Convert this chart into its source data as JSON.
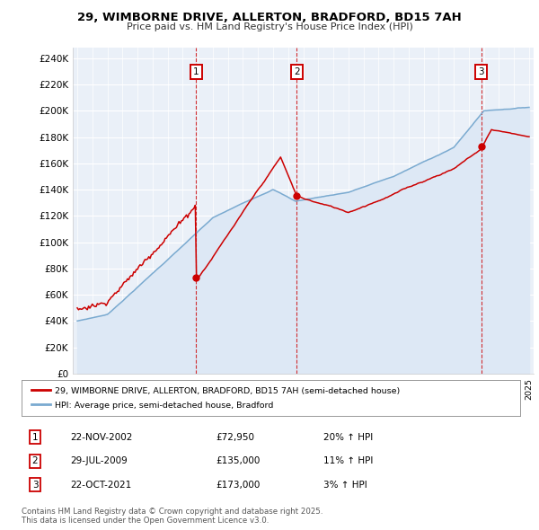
{
  "title": "29, WIMBORNE DRIVE, ALLERTON, BRADFORD, BD15 7AH",
  "subtitle": "Price paid vs. HM Land Registry's House Price Index (HPI)",
  "ylabel_ticks": [
    "£0",
    "£20K",
    "£40K",
    "£60K",
    "£80K",
    "£100K",
    "£120K",
    "£140K",
    "£160K",
    "£180K",
    "£200K",
    "£220K",
    "£240K"
  ],
  "ytick_values": [
    0,
    20000,
    40000,
    60000,
    80000,
    100000,
    120000,
    140000,
    160000,
    180000,
    200000,
    220000,
    240000
  ],
  "ylim": [
    0,
    248000
  ],
  "xlim_start": 1994.7,
  "xlim_end": 2025.3,
  "sales": [
    {
      "year": 2002.9,
      "price": 72950,
      "label": "1"
    },
    {
      "year": 2009.58,
      "price": 135000,
      "label": "2"
    },
    {
      "year": 2021.82,
      "price": 173000,
      "label": "3"
    }
  ],
  "sale_color": "#cc0000",
  "hpi_color": "#7aaad0",
  "hpi_fill_color": "#dde8f5",
  "background_color": "#eaf0f8",
  "grid_color": "#ffffff",
  "legend_entries": [
    "29, WIMBORNE DRIVE, ALLERTON, BRADFORD, BD15 7AH (semi-detached house)",
    "HPI: Average price, semi-detached house, Bradford"
  ],
  "table_rows": [
    {
      "num": "1",
      "date": "22-NOV-2002",
      "price": "£72,950",
      "change": "20% ↑ HPI"
    },
    {
      "num": "2",
      "date": "29-JUL-2009",
      "price": "£135,000",
      "change": "11% ↑ HPI"
    },
    {
      "num": "3",
      "date": "22-OCT-2021",
      "price": "£173,000",
      "change": "3% ↑ HPI"
    }
  ],
  "footer": "Contains HM Land Registry data © Crown copyright and database right 2025.\nThis data is licensed under the Open Government Licence v3.0."
}
